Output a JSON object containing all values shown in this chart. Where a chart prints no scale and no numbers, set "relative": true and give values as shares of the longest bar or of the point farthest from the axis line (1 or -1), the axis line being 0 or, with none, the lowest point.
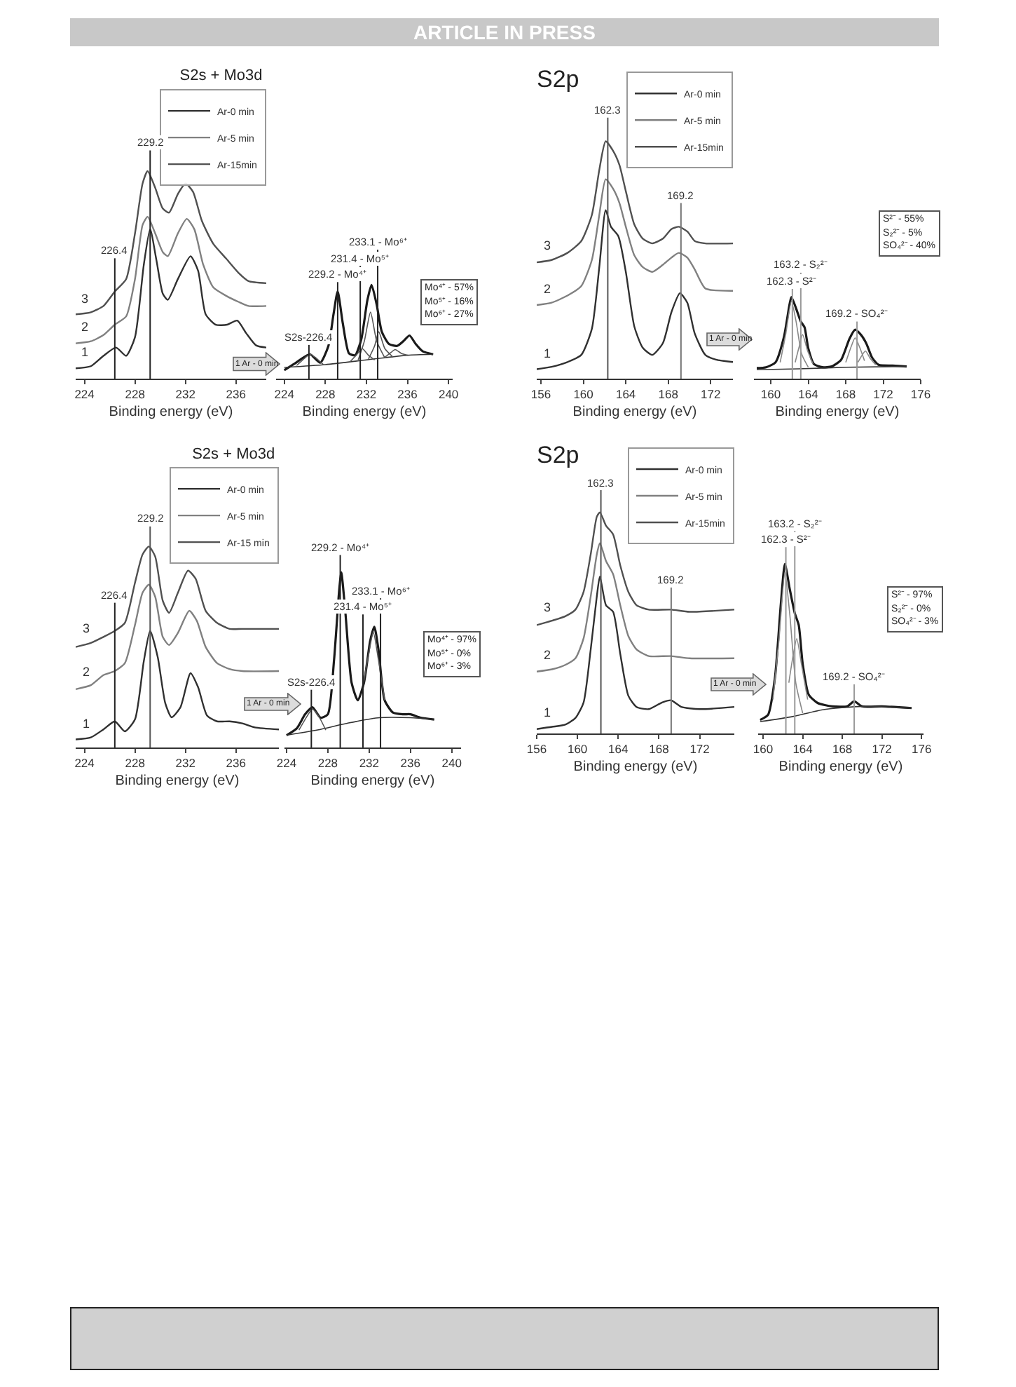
{
  "chart_data": [
    {
      "type": "line",
      "relative": true,
      "title": "S2s + Mo3d",
      "xlabel": "Binding energy (eV)",
      "xlim": [
        223.3,
        238.4
      ],
      "xticks": [
        224,
        228,
        232,
        236
      ],
      "legend": "top right",
      "annotations": [
        "ARTICLE IN PRESS",
        "1",
        "2",
        "3"
      ],
      "ref_lines": [
        {
          "axis": "x",
          "value": 226.4,
          "label": "226.4",
          "color": "#222222"
        },
        {
          "axis": "x",
          "value": 229.2,
          "label": "229.2",
          "color": "#222222"
        }
      ],
      "series": [
        {
          "name": "Ar-0 min",
          "color": "#303030",
          "x": [
            223.3,
            224.5,
            225.5,
            226.5,
            227.3,
            228.0,
            228.7,
            229.2,
            229.7,
            230.2,
            230.6,
            231.4,
            232.4,
            233.0,
            233.6,
            234.4,
            235.3,
            236.1,
            236.8,
            237.6,
            238.4
          ],
          "values": [
            0.05,
            0.06,
            0.11,
            0.15,
            0.11,
            0.2,
            0.55,
            0.72,
            0.57,
            0.41,
            0.38,
            0.48,
            0.59,
            0.52,
            0.31,
            0.26,
            0.26,
            0.28,
            0.22,
            0.16,
            0.15
          ]
        },
        {
          "name": "Ar-5 min",
          "color": "#808080",
          "x": [
            223.3,
            224.5,
            225.5,
            226.4,
            227.3,
            228.0,
            228.6,
            229.0,
            229.6,
            230.2,
            230.6,
            231.4,
            232.1,
            232.7,
            233.4,
            234.2,
            235.2,
            236.2,
            237.0,
            238.4
          ],
          "values": [
            0.17,
            0.18,
            0.21,
            0.26,
            0.3,
            0.48,
            0.74,
            0.78,
            0.7,
            0.61,
            0.59,
            0.7,
            0.77,
            0.72,
            0.55,
            0.44,
            0.4,
            0.37,
            0.35,
            0.35
          ]
        },
        {
          "name": "Ar-15min",
          "color": "#505050",
          "x": [
            223.3,
            224.5,
            225.5,
            226.4,
            227.3,
            228.0,
            228.6,
            229.0,
            229.6,
            230.2,
            230.7,
            231.4,
            232.0,
            232.6,
            233.3,
            234.2,
            235.2,
            236.2,
            237.0,
            238.4
          ],
          "values": [
            0.31,
            0.32,
            0.35,
            0.42,
            0.48,
            0.7,
            0.94,
            1.0,
            0.92,
            0.82,
            0.8,
            0.89,
            0.94,
            0.9,
            0.76,
            0.65,
            0.58,
            0.51,
            0.47,
            0.46
          ]
        }
      ]
    },
    {
      "type": "line",
      "relative": true,
      "xlabel": "Binding energy (eV)",
      "xlim": [
        223.2,
        240.4
      ],
      "xticks": [
        224,
        228,
        232,
        236,
        240
      ],
      "annotations": [
        "1  Ar - 0 min",
        "Mo⁴⁺ - 57%",
        "Mo⁵⁺ - 16%",
        "Mo⁶⁺ - 27%"
      ],
      "ref_lines": [
        {
          "axis": "x",
          "value": 226.4,
          "label": "S2s-226.4",
          "color": "#222222"
        },
        {
          "axis": "x",
          "value": 229.2,
          "label": "229.2 - Mo⁴⁺",
          "color": "#222222"
        },
        {
          "axis": "x",
          "value": 231.4,
          "label": "231.4 - Mo⁵⁺",
          "color": "#222222"
        },
        {
          "axis": "x",
          "value": 233.1,
          "label": "233.1 - Mo⁶⁺",
          "color": "#222222"
        }
      ],
      "series": [
        {
          "color": "#1a1a1a",
          "x": [
            224.0,
            225.0,
            226.5,
            227.5,
            228.3,
            228.8,
            229.2,
            229.7,
            230.3,
            230.9,
            231.5,
            232.1,
            232.5,
            233.0,
            233.5,
            234.2,
            235.0,
            235.6,
            236.2,
            236.8,
            237.5,
            238.5
          ],
          "values": [
            0.09,
            0.16,
            0.26,
            0.17,
            0.35,
            0.69,
            0.93,
            0.59,
            0.27,
            0.25,
            0.42,
            0.84,
            1.0,
            0.79,
            0.5,
            0.37,
            0.35,
            0.4,
            0.46,
            0.37,
            0.29,
            0.26
          ]
        },
        {
          "color": "#333333",
          "x": [
            224,
            228,
            232,
            236,
            238.5
          ],
          "values": [
            0.12,
            0.15,
            0.2,
            0.25,
            0.26
          ]
        },
        {
          "color": "#555555",
          "x": [
            225.2,
            226.0,
            226.5,
            227.1,
            227.8
          ],
          "values": [
            0.14,
            0.22,
            0.26,
            0.22,
            0.15
          ]
        },
        {
          "color": "#555555",
          "x": [
            231.2,
            231.8,
            232.4,
            233.0,
            233.8
          ],
          "values": [
            0.2,
            0.4,
            0.71,
            0.4,
            0.22
          ]
        },
        {
          "color": "#555555",
          "x": [
            232.2,
            232.8,
            233.2,
            233.8,
            234.6
          ],
          "values": [
            0.21,
            0.35,
            0.5,
            0.32,
            0.23
          ]
        },
        {
          "color": "#555555",
          "x": [
            230.4,
            231.0,
            231.6,
            232.2,
            232.8
          ],
          "values": [
            0.18,
            0.25,
            0.32,
            0.25,
            0.2
          ]
        },
        {
          "color": "#555555",
          "x": [
            233.8,
            234.4,
            234.8,
            235.4,
            236.0
          ],
          "values": [
            0.23,
            0.28,
            0.31,
            0.27,
            0.25
          ]
        }
      ]
    },
    {
      "type": "line",
      "relative": true,
      "title": "S2p",
      "xlabel": "Binding energy (eV)",
      "xlim": [
        155.6,
        174.1
      ],
      "xticks": [
        156,
        160,
        164,
        168,
        172
      ],
      "legend": "top right",
      "annotations": [
        "1",
        "2",
        "3"
      ],
      "ref_lines": [
        {
          "axis": "x",
          "value": 162.3,
          "label": "162.3",
          "color": "#555555"
        },
        {
          "axis": "x",
          "value": 169.2,
          "label": "169.2",
          "color": "#777777"
        }
      ],
      "series": [
        {
          "name": "Ar-0 min",
          "color": "#303030",
          "x": [
            155.6,
            157.0,
            158.5,
            159.8,
            160.8,
            161.5,
            162.1,
            162.6,
            163.3,
            164.0,
            164.8,
            165.6,
            166.5,
            167.5,
            168.3,
            169.1,
            169.8,
            170.5,
            171.5,
            172.5,
            174.1
          ],
          "values": [
            0.04,
            0.05,
            0.07,
            0.1,
            0.21,
            0.47,
            0.71,
            0.64,
            0.6,
            0.45,
            0.22,
            0.13,
            0.1,
            0.15,
            0.28,
            0.36,
            0.32,
            0.19,
            0.1,
            0.08,
            0.07
          ]
        },
        {
          "name": "Ar-5 min",
          "color": "#808080",
          "x": [
            155.6,
            157.0,
            158.5,
            159.8,
            160.8,
            161.5,
            162.1,
            162.8,
            163.4,
            164.0,
            164.8,
            165.6,
            166.5,
            167.5,
            168.3,
            169.0,
            169.8,
            170.5,
            171.5,
            174.1
          ],
          "values": [
            0.31,
            0.32,
            0.35,
            0.39,
            0.5,
            0.69,
            0.84,
            0.8,
            0.74,
            0.64,
            0.52,
            0.47,
            0.45,
            0.48,
            0.51,
            0.53,
            0.51,
            0.46,
            0.38,
            0.37
          ]
        },
        {
          "name": "Ar-15min",
          "color": "#505050",
          "x": [
            155.6,
            157.0,
            158.5,
            159.8,
            160.8,
            161.5,
            162.1,
            162.8,
            163.4,
            164.0,
            164.8,
            165.6,
            166.5,
            167.5,
            168.3,
            169.0,
            169.8,
            170.5,
            171.5,
            174.1
          ],
          "values": [
            0.49,
            0.5,
            0.53,
            0.58,
            0.69,
            0.88,
            1.0,
            0.96,
            0.9,
            0.79,
            0.65,
            0.59,
            0.57,
            0.59,
            0.63,
            0.64,
            0.62,
            0.58,
            0.57,
            0.57
          ]
        }
      ]
    },
    {
      "type": "line",
      "relative": true,
      "xlabel": "Binding energy (eV)",
      "xlim": [
        158.2,
        176
      ],
      "xticks": [
        160,
        164,
        168,
        172,
        176
      ],
      "annotations": [
        "1  Ar - 0 min",
        "S²⁻ - 55%",
        "S₂²⁻ - 5%",
        "SO₄²⁻ - 40%"
      ],
      "ref_lines": [
        {
          "axis": "x",
          "value": 162.3,
          "label": "162.3 - S²⁻",
          "color": "#999999"
        },
        {
          "axis": "x",
          "value": 163.2,
          "label": "163.2 - S₂²⁻",
          "color": "#999999"
        },
        {
          "axis": "x",
          "value": 169.2,
          "label": "169.2 - SO₄²⁻",
          "color": "#999999"
        }
      ],
      "series": [
        {
          "color": "#1a1a1a",
          "x": [
            158.5,
            159.5,
            160.5,
            161.4,
            162.0,
            162.2,
            162.7,
            163.2,
            163.6,
            164.0,
            164.6,
            165.5,
            166.5,
            167.5,
            168.4,
            169.0,
            169.6,
            170.2,
            170.8,
            171.5,
            173.0,
            174.5
          ],
          "values": [
            0.13,
            0.14,
            0.2,
            0.51,
            0.91,
            1.0,
            0.86,
            0.7,
            0.63,
            0.37,
            0.18,
            0.14,
            0.15,
            0.23,
            0.49,
            0.6,
            0.54,
            0.43,
            0.26,
            0.17,
            0.16,
            0.15
          ]
        },
        {
          "color": "#333333",
          "x": [
            158.5,
            163,
            168,
            174.5
          ],
          "values": [
            0.11,
            0.12,
            0.14,
            0.15
          ]
        },
        {
          "color": "#888888",
          "x": [
            161.0,
            161.6,
            162.2,
            162.7,
            163.3,
            164.0
          ],
          "values": [
            0.2,
            0.55,
            0.95,
            0.7,
            0.3,
            0.14
          ]
        },
        {
          "color": "#888888",
          "x": [
            162.6,
            163.0,
            163.4,
            163.9,
            164.5
          ],
          "values": [
            0.2,
            0.38,
            0.54,
            0.35,
            0.18
          ]
        },
        {
          "color": "#888888",
          "x": [
            168.0,
            168.6,
            169.0,
            169.5,
            170.0
          ],
          "values": [
            0.2,
            0.4,
            0.5,
            0.38,
            0.22
          ]
        },
        {
          "color": "#888888",
          "x": [
            169.3,
            169.7,
            170.1,
            170.6,
            171.2
          ],
          "values": [
            0.2,
            0.28,
            0.34,
            0.25,
            0.17
          ]
        }
      ]
    },
    {
      "type": "line",
      "relative": true,
      "title": "S2s + Mo3d",
      "xlabel": "Binding energy (eV)",
      "xlim": [
        223.3,
        239.4
      ],
      "xticks": [
        224,
        228,
        232,
        236
      ],
      "legend": "top right",
      "annotations": [
        "1",
        "2",
        "3"
      ],
      "ref_lines": [
        {
          "axis": "x",
          "value": 226.4,
          "label": "226.4",
          "color": "#222222"
        },
        {
          "axis": "x",
          "value": 229.2,
          "label": "229.2",
          "color": "#555555"
        }
      ],
      "series": [
        {
          "name": "Ar-0 min",
          "color": "#303030",
          "x": [
            223.3,
            224.5,
            225.5,
            226.4,
            227.2,
            228.0,
            228.7,
            229.2,
            229.8,
            230.4,
            230.9,
            231.6,
            232.4,
            233.0,
            233.7,
            234.5,
            235.5,
            236.5,
            237.5,
            239.4
          ],
          "values": [
            0.04,
            0.05,
            0.09,
            0.13,
            0.08,
            0.14,
            0.43,
            0.58,
            0.45,
            0.22,
            0.15,
            0.2,
            0.37,
            0.3,
            0.16,
            0.13,
            0.13,
            0.12,
            0.1,
            0.09
          ]
        },
        {
          "name": "Ar-5 min",
          "color": "#808080",
          "x": [
            223.3,
            224.5,
            225.5,
            226.4,
            227.2,
            228.0,
            228.6,
            229.1,
            229.6,
            230.2,
            230.7,
            231.4,
            232.3,
            232.9,
            233.6,
            234.5,
            235.5,
            236.5,
            239.4
          ],
          "values": [
            0.29,
            0.31,
            0.36,
            0.38,
            0.42,
            0.61,
            0.77,
            0.81,
            0.75,
            0.55,
            0.51,
            0.57,
            0.68,
            0.63,
            0.5,
            0.42,
            0.39,
            0.38,
            0.38
          ]
        },
        {
          "name": "Ar-15 min",
          "color": "#505050",
          "x": [
            223.3,
            224.5,
            225.5,
            226.4,
            227.2,
            228.0,
            228.6,
            229.1,
            229.6,
            230.2,
            230.7,
            231.4,
            232.2,
            232.8,
            233.6,
            234.5,
            235.5,
            236.5,
            239.4
          ],
          "values": [
            0.5,
            0.52,
            0.55,
            0.58,
            0.62,
            0.82,
            0.96,
            1.0,
            0.95,
            0.73,
            0.67,
            0.77,
            0.88,
            0.84,
            0.68,
            0.62,
            0.59,
            0.59,
            0.59
          ]
        }
      ]
    },
    {
      "type": "line",
      "relative": true,
      "xlabel": "Binding energy (eV)",
      "xlim": [
        223.8,
        240.9
      ],
      "xticks": [
        224,
        228,
        232,
        236,
        240
      ],
      "annotations": [
        "1  Ar - 0 min",
        "Mo⁴⁺ - 97%",
        "Mo⁵⁺ - 0%",
        "Mo⁶⁺ - 3%"
      ],
      "ref_lines": [
        {
          "axis": "x",
          "value": 226.4,
          "label": "S2s-226.4",
          "color": "#222222"
        },
        {
          "axis": "x",
          "value": 229.2,
          "label": "229.2 - Mo⁴⁺",
          "color": "#222222"
        },
        {
          "axis": "x",
          "value": 231.4,
          "label": "231.4 - Mo⁵⁺",
          "color": "#222222"
        },
        {
          "axis": "x",
          "value": 233.1,
          "label": "233.1 - Mo⁶⁺",
          "color": "#222222"
        }
      ],
      "series": [
        {
          "color": "#1a1a1a",
          "x": [
            224.0,
            225.0,
            225.8,
            226.5,
            227.3,
            228.0,
            228.6,
            229.1,
            229.3,
            229.7,
            230.3,
            230.9,
            231.5,
            232.1,
            232.5,
            232.9,
            233.5,
            234.3,
            235.3,
            236.0,
            237.0,
            238.3
          ],
          "values": [
            0.07,
            0.11,
            0.19,
            0.23,
            0.17,
            0.19,
            0.5,
            0.9,
            1.0,
            0.77,
            0.37,
            0.27,
            0.37,
            0.61,
            0.69,
            0.56,
            0.27,
            0.2,
            0.19,
            0.19,
            0.17,
            0.16
          ]
        },
        {
          "color": "#333333",
          "x": [
            224,
            227,
            230,
            233,
            236,
            238.3
          ],
          "values": [
            0.07,
            0.1,
            0.14,
            0.17,
            0.17,
            0.16
          ]
        },
        {
          "color": "#555555",
          "x": [
            225.2,
            226.0,
            226.5,
            227.1,
            227.8
          ],
          "values": [
            0.1,
            0.18,
            0.22,
            0.18,
            0.1
          ]
        },
        {
          "color": "#555555",
          "x": [
            231.4,
            232.0,
            232.4,
            232.9,
            233.5
          ],
          "values": [
            0.35,
            0.55,
            0.66,
            0.5,
            0.27
          ]
        }
      ]
    },
    {
      "type": "line",
      "relative": true,
      "title": "S2p",
      "xlabel": "Binding energy (eV)",
      "xlim": [
        156.0,
        175.4
      ],
      "xticks": [
        156,
        160,
        164,
        168,
        172
      ],
      "legend": "top right",
      "annotations": [
        "1",
        "2",
        "3"
      ],
      "ref_lines": [
        {
          "axis": "x",
          "value": 162.3,
          "label": "162.3",
          "color": "#555555"
        },
        {
          "axis": "x",
          "value": 169.2,
          "label": "169.2",
          "color": "#777777"
        }
      ],
      "series": [
        {
          "name": "Ar-0 min",
          "color": "#303030",
          "x": [
            156.0,
            157.5,
            158.8,
            159.8,
            160.6,
            161.3,
            161.9,
            162.2,
            162.8,
            163.5,
            164.2,
            165.0,
            165.8,
            167.0,
            168.3,
            169.2,
            170.2,
            172.0,
            175.4
          ],
          "values": [
            0.02,
            0.03,
            0.04,
            0.07,
            0.14,
            0.38,
            0.62,
            0.71,
            0.58,
            0.55,
            0.36,
            0.17,
            0.12,
            0.11,
            0.14,
            0.15,
            0.12,
            0.11,
            0.12
          ]
        },
        {
          "name": "Ar-5 min",
          "color": "#808080",
          "x": [
            156.0,
            157.5,
            158.8,
            159.8,
            160.6,
            161.3,
            161.9,
            162.2,
            162.8,
            163.5,
            164.2,
            165.0,
            165.8,
            167.0,
            169.2,
            171.0,
            175.4
          ],
          "values": [
            0.28,
            0.29,
            0.31,
            0.34,
            0.43,
            0.62,
            0.81,
            0.86,
            0.78,
            0.72,
            0.58,
            0.44,
            0.38,
            0.35,
            0.35,
            0.34,
            0.34
          ]
        },
        {
          "name": "Ar-15min",
          "color": "#505050",
          "x": [
            156.0,
            157.5,
            158.8,
            159.8,
            160.6,
            161.3,
            161.9,
            162.2,
            162.8,
            163.5,
            164.2,
            165.0,
            165.8,
            167.0,
            169.2,
            171.0,
            175.4
          ],
          "values": [
            0.49,
            0.51,
            0.53,
            0.56,
            0.64,
            0.81,
            0.98,
            1.0,
            0.94,
            0.9,
            0.76,
            0.64,
            0.58,
            0.56,
            0.56,
            0.55,
            0.56
          ]
        }
      ]
    },
    {
      "type": "line",
      "relative": true,
      "xlabel": "Binding energy (eV)",
      "xlim": [
        159.5,
        176.2
      ],
      "xticks": [
        160,
        164,
        168,
        172,
        176
      ],
      "annotations": [
        "1  Ar - 0 min",
        "S²⁻ - 97%",
        "S₂²⁻ - 0%",
        "SO₄²⁻ - 3%"
      ],
      "ref_lines": [
        {
          "axis": "x",
          "value": 162.3,
          "label": "162.3 - S²⁻",
          "color": "#999999"
        },
        {
          "axis": "x",
          "value": 163.2,
          "label": "163.2 - S₂²⁻",
          "color": "#999999"
        },
        {
          "axis": "x",
          "value": 169.2,
          "label": "169.2 - SO₄²⁻",
          "color": "#999999"
        }
      ],
      "series": [
        {
          "color": "#1a1a1a",
          "x": [
            159.7,
            160.5,
            161.2,
            161.8,
            162.2,
            162.7,
            163.2,
            163.6,
            164.0,
            164.6,
            165.5,
            167.0,
            168.5,
            169.2,
            170.0,
            172.0,
            175.0
          ],
          "values": [
            0.08,
            0.11,
            0.33,
            0.77,
            1.0,
            0.85,
            0.71,
            0.64,
            0.41,
            0.23,
            0.18,
            0.16,
            0.16,
            0.19,
            0.16,
            0.16,
            0.15
          ]
        },
        {
          "color": "#333333",
          "x": [
            159.7,
            163,
            166,
            170,
            175
          ],
          "values": [
            0.07,
            0.1,
            0.14,
            0.16,
            0.15
          ]
        },
        {
          "color": "#888888",
          "x": [
            161.0,
            161.6,
            162.2,
            162.7,
            163.3,
            164.0
          ],
          "values": [
            0.2,
            0.55,
            0.95,
            0.7,
            0.3,
            0.12
          ]
        },
        {
          "color": "#888888",
          "x": [
            162.6,
            163.0,
            163.4,
            163.9,
            164.5
          ],
          "values": [
            0.3,
            0.45,
            0.56,
            0.4,
            0.2
          ]
        }
      ]
    }
  ]
}
